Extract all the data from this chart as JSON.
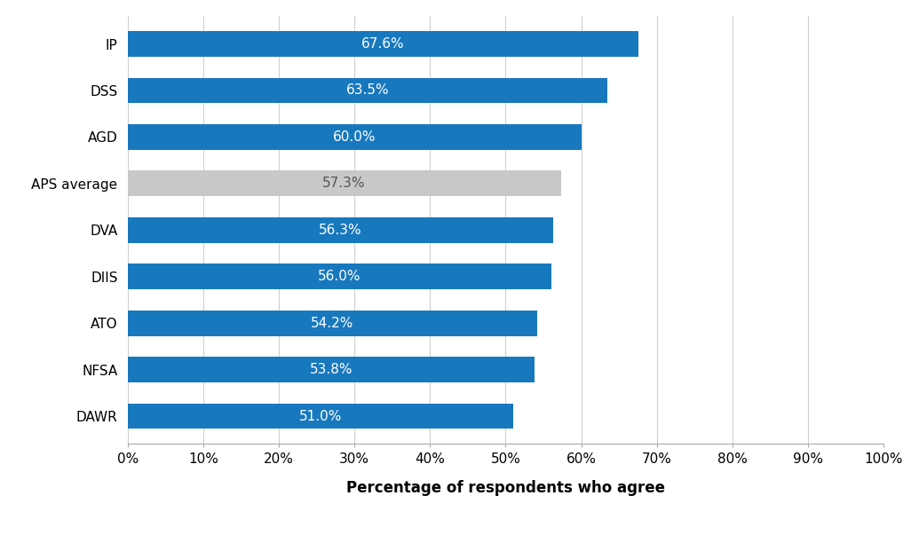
{
  "categories": [
    "DAWR",
    "NFSA",
    "ATO",
    "DIIS",
    "DVA",
    "APS average",
    "AGD",
    "DSS",
    "IP"
  ],
  "values": [
    51.0,
    53.8,
    54.2,
    56.0,
    56.3,
    57.3,
    60.0,
    63.5,
    67.6
  ],
  "bar_colors": [
    "#1878be",
    "#1878be",
    "#1878be",
    "#1878be",
    "#1878be",
    "#c8c8c8",
    "#1878be",
    "#1878be",
    "#1878be"
  ],
  "labels": [
    "51.0%",
    "53.8%",
    "54.2%",
    "56.0%",
    "56.3%",
    "57.3%",
    "60.0%",
    "63.5%",
    "67.6%"
  ],
  "xlabel": "Percentage of respondents who agree",
  "xlim": [
    0,
    100
  ],
  "xticks": [
    0,
    10,
    20,
    30,
    40,
    50,
    60,
    70,
    80,
    90,
    100
  ],
  "xtick_labels": [
    "0%",
    "10%",
    "20%",
    "30%",
    "40%",
    "50%",
    "60%",
    "70%",
    "80%",
    "90%",
    "100%"
  ],
  "bar_height": 0.55,
  "label_fontsize": 11,
  "axis_label_fontsize": 12,
  "tick_fontsize": 11,
  "background_color": "#ffffff",
  "grid_color": "#d0d0d0",
  "text_color_white": "#ffffff",
  "text_color_dark": "#555555"
}
